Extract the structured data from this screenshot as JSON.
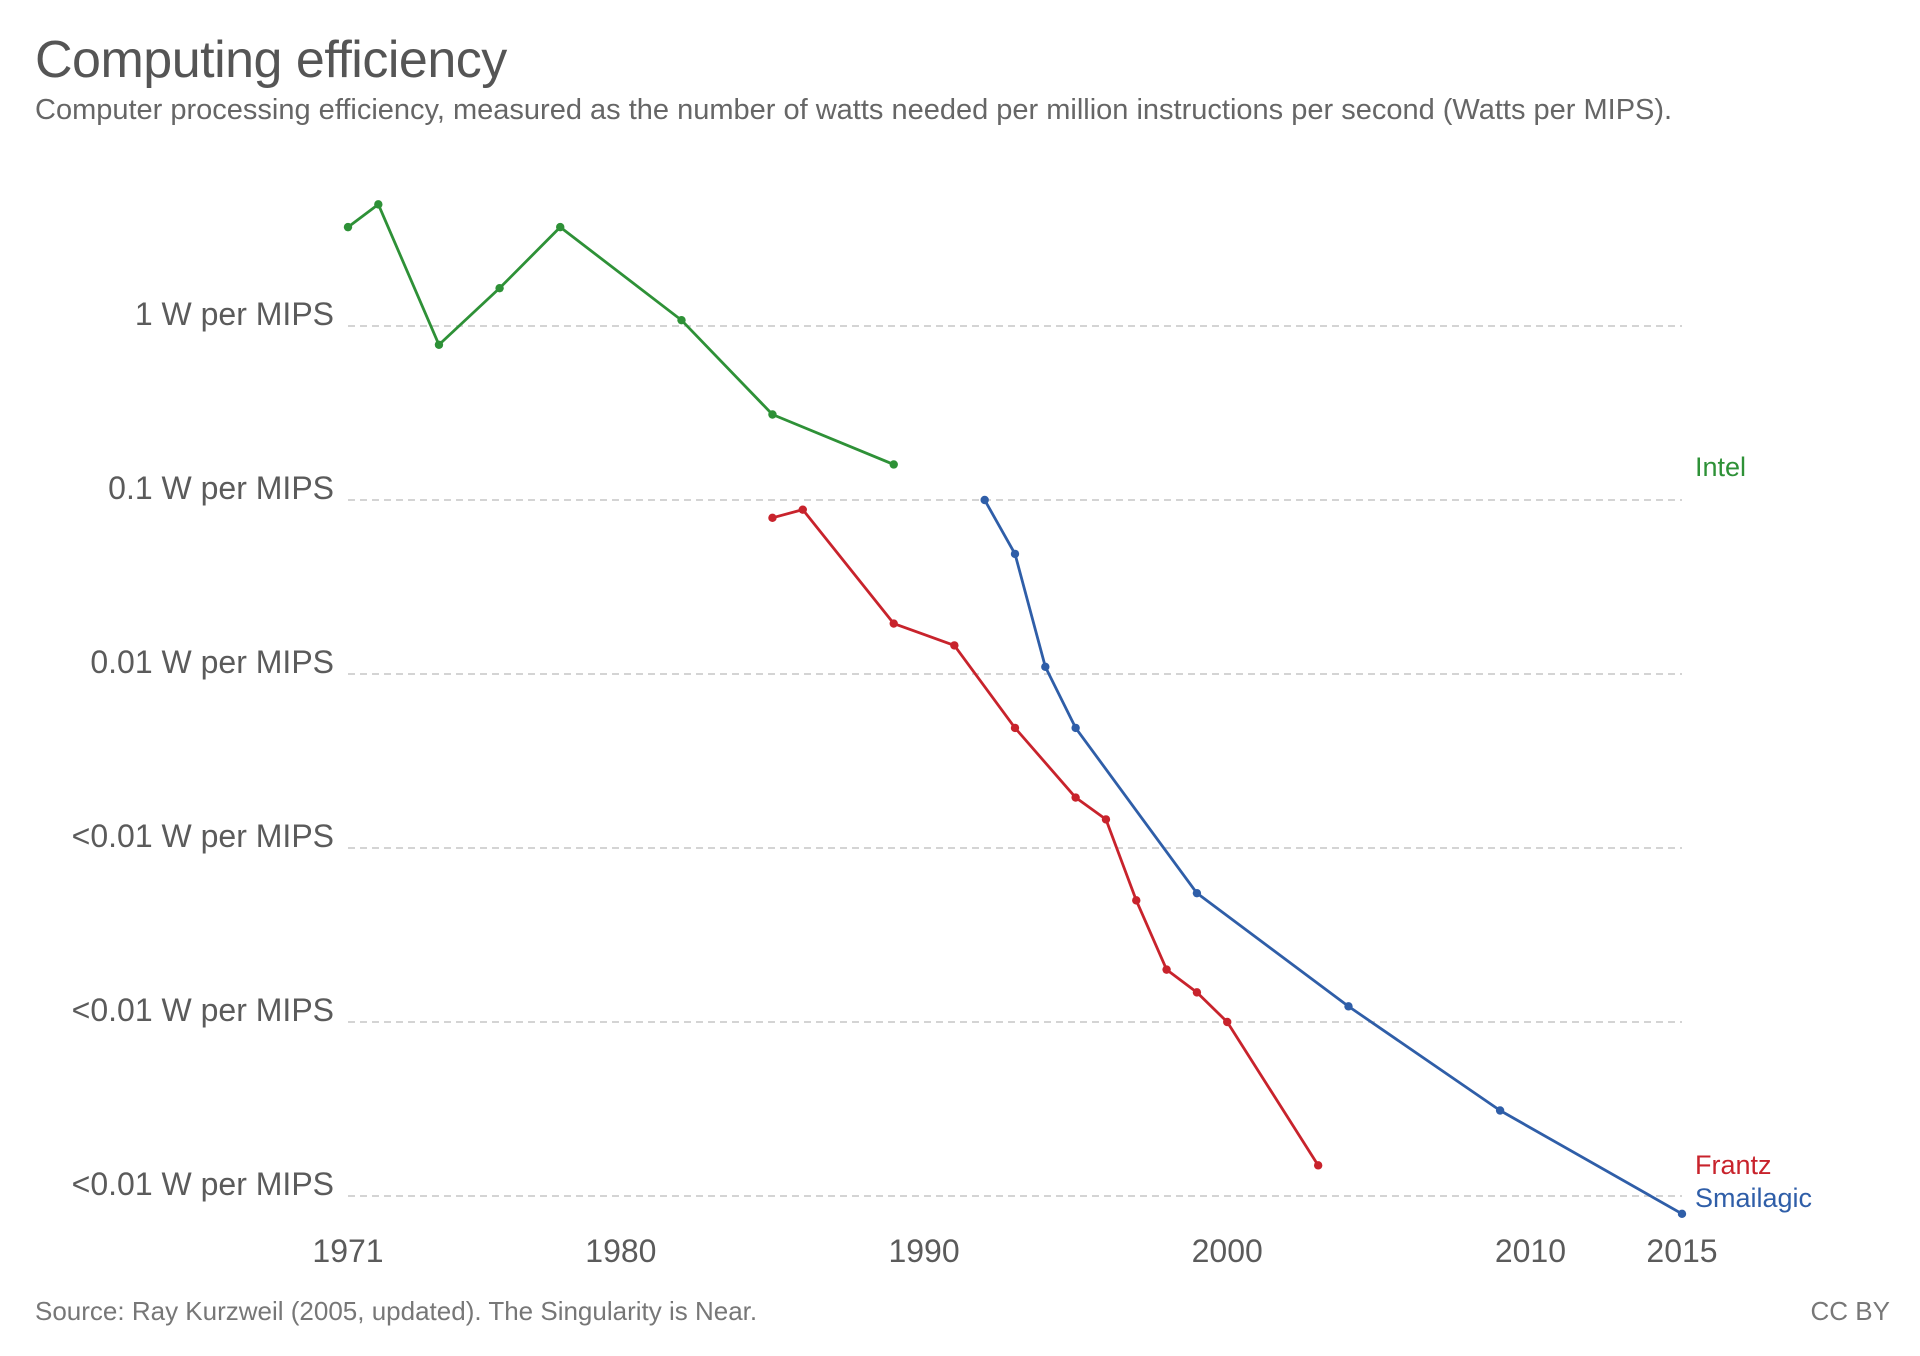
{
  "header": {
    "title": "Computing efficiency",
    "subtitle": "Computer processing efficiency, measured as the number of watts needed per million instructions per second (Watts per MIPS)."
  },
  "footer": {
    "source": "Source: Ray Kurzweil (2005, updated). The Singularity is Near.",
    "license": "CC BY"
  },
  "colors": {
    "Intel": "#2e9137",
    "Frantz": "#c8232c",
    "Smailagic": "#2f5ea8",
    "grid": "#d4d4d4"
  },
  "chart_data": {
    "type": "line",
    "title": "Computing efficiency",
    "subtitle": "Computer processing efficiency, measured as the number of watts needed per million instructions per second (Watts per MIPS).",
    "xlabel": "",
    "ylabel": "",
    "yscale": "log",
    "xlim": [
      1971,
      2015
    ],
    "ylim_log10": [
      -5.1,
      0.8
    ],
    "x_ticks": [
      1971,
      1980,
      1990,
      2000,
      2010,
      2015
    ],
    "y_ticks": [
      {
        "value_log10": 0,
        "label": "1 W per MIPS"
      },
      {
        "value_log10": -1,
        "label": "0.1 W per MIPS"
      },
      {
        "value_log10": -2,
        "label": "0.01 W per MIPS"
      },
      {
        "value_log10": -3,
        "label": "<0.01 W per MIPS"
      },
      {
        "value_log10": -4,
        "label": "<0.01 W per MIPS"
      },
      {
        "value_log10": -5,
        "label": "<0.01 W per MIPS"
      }
    ],
    "legend": "inline-right",
    "grid": true,
    "series": [
      {
        "name": "Intel",
        "x": [
          1971,
          1972,
          1974,
          1976,
          1978,
          1982,
          1985,
          1989
        ],
        "y": [
          3.7,
          5.0,
          0.78,
          1.65,
          3.7,
          1.08,
          0.31,
          0.16
        ]
      },
      {
        "name": "Frantz",
        "x": [
          1985,
          1986,
          1989,
          1991,
          1993,
          1995,
          1996,
          1997,
          1998,
          1999,
          2000,
          2003
        ],
        "y": [
          0.079,
          0.088,
          0.0195,
          0.0146,
          0.0049,
          0.00195,
          0.00146,
          0.0005,
          0.0002,
          0.000148,
          0.0001,
          1.5e-05
        ]
      },
      {
        "name": "Smailagic",
        "x": [
          1992,
          1993,
          1994,
          1995,
          1999,
          2004,
          2009,
          2015
        ],
        "y": [
          0.1,
          0.049,
          0.011,
          0.0049,
          0.00055,
          0.000123,
          3.1e-05,
          7.9e-06
        ]
      }
    ]
  }
}
